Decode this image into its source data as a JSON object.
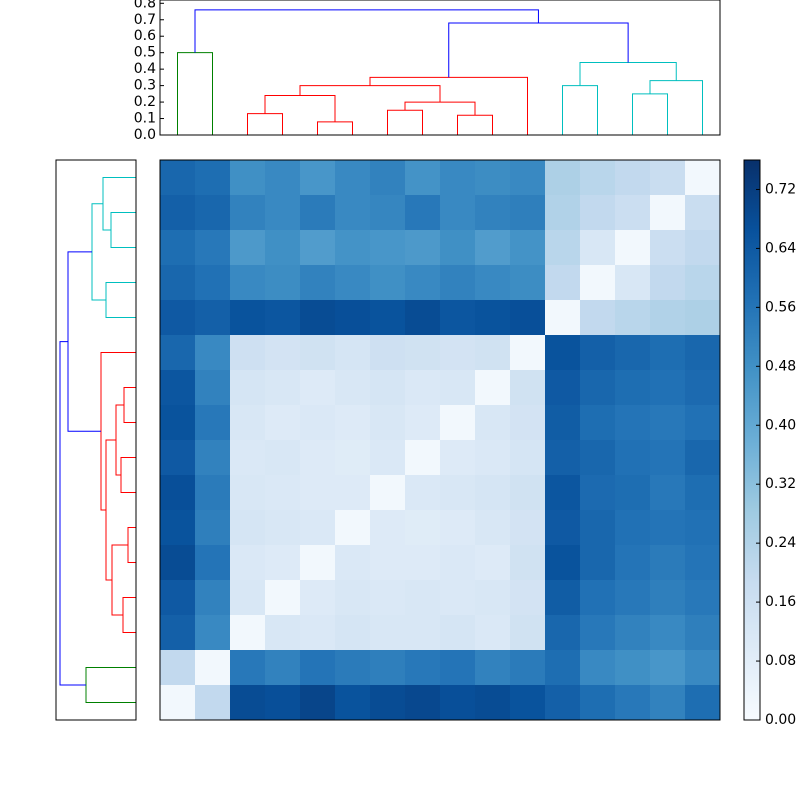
{
  "chart_data": {
    "type": "heatmap",
    "values": [
      [
        0.6,
        0.58,
        0.48,
        0.5,
        0.46,
        0.5,
        0.52,
        0.47,
        0.5,
        0.49,
        0.5,
        0.25,
        0.22,
        0.2,
        0.18,
        0.02
      ],
      [
        0.62,
        0.6,
        0.52,
        0.5,
        0.54,
        0.5,
        0.51,
        0.55,
        0.5,
        0.52,
        0.53,
        0.24,
        0.2,
        0.17,
        0.02,
        0.18
      ],
      [
        0.58,
        0.55,
        0.45,
        0.48,
        0.44,
        0.47,
        0.46,
        0.45,
        0.48,
        0.44,
        0.47,
        0.22,
        0.12,
        0.02,
        0.17,
        0.2
      ],
      [
        0.6,
        0.57,
        0.5,
        0.49,
        0.52,
        0.5,
        0.48,
        0.5,
        0.52,
        0.5,
        0.49,
        0.2,
        0.02,
        0.12,
        0.2,
        0.22
      ],
      [
        0.64,
        0.62,
        0.66,
        0.65,
        0.68,
        0.67,
        0.66,
        0.68,
        0.65,
        0.66,
        0.67,
        0.02,
        0.2,
        0.22,
        0.24,
        0.25
      ],
      [
        0.6,
        0.5,
        0.16,
        0.14,
        0.15,
        0.13,
        0.16,
        0.15,
        0.14,
        0.15,
        0.02,
        0.66,
        0.62,
        0.6,
        0.58,
        0.6
      ],
      [
        0.65,
        0.52,
        0.13,
        0.12,
        0.1,
        0.12,
        0.13,
        0.11,
        0.12,
        0.02,
        0.15,
        0.64,
        0.6,
        0.58,
        0.57,
        0.59
      ],
      [
        0.66,
        0.55,
        0.12,
        0.1,
        0.11,
        0.1,
        0.12,
        0.1,
        0.02,
        0.12,
        0.14,
        0.63,
        0.58,
        0.56,
        0.55,
        0.57
      ],
      [
        0.64,
        0.52,
        0.11,
        0.12,
        0.1,
        0.09,
        0.11,
        0.02,
        0.1,
        0.11,
        0.13,
        0.62,
        0.6,
        0.57,
        0.56,
        0.6
      ],
      [
        0.67,
        0.54,
        0.12,
        0.11,
        0.1,
        0.1,
        0.02,
        0.11,
        0.12,
        0.13,
        0.15,
        0.65,
        0.59,
        0.58,
        0.55,
        0.58
      ],
      [
        0.66,
        0.53,
        0.13,
        0.12,
        0.11,
        0.02,
        0.1,
        0.09,
        0.1,
        0.12,
        0.14,
        0.64,
        0.6,
        0.57,
        0.56,
        0.57
      ],
      [
        0.68,
        0.56,
        0.11,
        0.1,
        0.02,
        0.11,
        0.1,
        0.1,
        0.11,
        0.1,
        0.15,
        0.66,
        0.6,
        0.56,
        0.54,
        0.56
      ],
      [
        0.64,
        0.52,
        0.12,
        0.02,
        0.1,
        0.12,
        0.11,
        0.12,
        0.11,
        0.12,
        0.14,
        0.63,
        0.57,
        0.55,
        0.53,
        0.55
      ],
      [
        0.62,
        0.5,
        0.02,
        0.12,
        0.11,
        0.13,
        0.12,
        0.12,
        0.13,
        0.11,
        0.15,
        0.6,
        0.55,
        0.52,
        0.5,
        0.53
      ],
      [
        0.2,
        0.02,
        0.55,
        0.52,
        0.56,
        0.54,
        0.53,
        0.55,
        0.56,
        0.52,
        0.54,
        0.58,
        0.5,
        0.48,
        0.46,
        0.5
      ],
      [
        0.02,
        0.2,
        0.68,
        0.67,
        0.7,
        0.66,
        0.68,
        0.69,
        0.67,
        0.68,
        0.66,
        0.62,
        0.58,
        0.55,
        0.52,
        0.58
      ]
    ],
    "links": [
      {
        "left": 0,
        "right": 1,
        "height": 0.5,
        "color": "#008000"
      },
      {
        "left": 2,
        "right": 3,
        "height": 0.13,
        "color": "#ff0000"
      },
      {
        "left": 4,
        "right": 5,
        "height": 0.08,
        "color": "#ff0000"
      },
      {
        "left": 6,
        "right": 7,
        "height": 0.15,
        "color": "#ff0000"
      },
      {
        "left": 8,
        "right": 9,
        "height": 0.12,
        "color": "#ff0000"
      },
      {
        "left": 17,
        "right": 18,
        "height": 0.24,
        "color": "#ff0000"
      },
      {
        "left": 19,
        "right": 20,
        "height": 0.2,
        "color": "#ff0000"
      },
      {
        "left": 21,
        "right": 22,
        "height": 0.3,
        "color": "#ff0000"
      },
      {
        "left": 23,
        "right": 10,
        "height": 0.35,
        "color": "#ff0000"
      },
      {
        "left": 11,
        "right": 12,
        "height": 0.3,
        "color": "#00bfbf"
      },
      {
        "left": 13,
        "right": 14,
        "height": 0.25,
        "color": "#00bfbf"
      },
      {
        "left": 26,
        "right": 15,
        "height": 0.33,
        "color": "#00bfbf"
      },
      {
        "left": 25,
        "right": 27,
        "height": 0.44,
        "color": "#00bfbf"
      },
      {
        "left": 24,
        "right": 28,
        "height": 0.68,
        "color": "#0000ff"
      },
      {
        "left": 16,
        "right": 29,
        "height": 0.76,
        "color": "#0000ff"
      }
    ],
    "ylim": [
      0,
      0.82
    ],
    "yticks": [
      {
        "value": 0,
        "label": "0.0"
      },
      0.1,
      0.2,
      0.3,
      0.4,
      0.5,
      0.6,
      0.7,
      0.8
    ],
    "xlim": [
      0.8,
      0
    ],
    "clim": [
      0,
      0.76
    ],
    "cticks": [
      {
        "value": 0,
        "label": "0.00"
      },
      0.08,
      0.16,
      0.24,
      0.32,
      {
        "value": 0.4,
        "label": "0.40"
      },
      0.48,
      0.56,
      0.64,
      0.72
    ],
    "colormap": [
      "#f7fbff",
      "#deebf7",
      "#c6dbef",
      "#9ecae1",
      "#6baed6",
      "#4292c6",
      "#2171b5",
      "#08519c",
      "#08306b"
    ]
  }
}
